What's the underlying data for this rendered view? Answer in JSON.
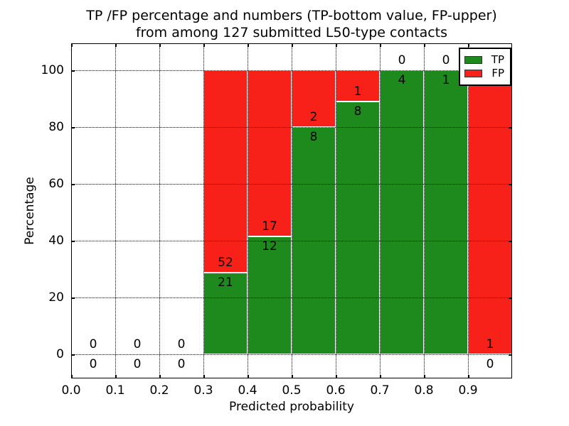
{
  "title": {
    "line1": "TP /FP percentage and numbers (TP-bottom value, FP-upper)",
    "line2": "from among 127 submitted L50-type contacts"
  },
  "axes": {
    "xlabel": "Predicted probability",
    "ylabel": "Percentage",
    "x_tick_labels": [
      "0.0",
      "0.1",
      "0.2",
      "0.3",
      "0.4",
      "0.5",
      "0.6",
      "0.7",
      "0.8",
      "0.9"
    ],
    "y_tick_labels": [
      "0",
      "20",
      "40",
      "60",
      "80",
      "100"
    ],
    "grid_style": "dotted",
    "grid_on_top_of_bars": true
  },
  "legend": {
    "position": "upper-right",
    "items": [
      {
        "label": "TP",
        "color": "#1e8a1e"
      },
      {
        "label": "FP",
        "color": "#f8211a"
      }
    ]
  },
  "chart_data": {
    "type": "bar",
    "stacked": true,
    "normalized_to_percent": 100,
    "title": "TP /FP percentage and numbers (TP-bottom value, FP-upper) from among 127 submitted L50-type contacts",
    "xlabel": "Predicted probability",
    "ylabel": "Percentage",
    "total_contacts": 127,
    "bin_edges": [
      0.0,
      0.1,
      0.2,
      0.3,
      0.4,
      0.5,
      0.6,
      0.7,
      0.8,
      0.9,
      1.0
    ],
    "x_ticks": [
      0.0,
      0.1,
      0.2,
      0.3,
      0.4,
      0.5,
      0.6,
      0.7,
      0.8,
      0.9
    ],
    "y_ticks": [
      0,
      20,
      40,
      60,
      80,
      100
    ],
    "xlim": [
      0.0,
      1.0
    ],
    "ylim": [
      -8.5,
      109.5
    ],
    "series": [
      {
        "name": "TP",
        "color": "#1e8a1e",
        "counts": [
          0,
          0,
          0,
          21,
          12,
          8,
          8,
          4,
          1,
          0
        ]
      },
      {
        "name": "FP",
        "color": "#f8211a",
        "counts": [
          0,
          0,
          0,
          52,
          17,
          2,
          1,
          0,
          0,
          1
        ]
      }
    ],
    "tp_percent_of_bin": [
      0,
      0,
      0,
      28.8,
      41.4,
      80.0,
      88.9,
      100.0,
      100.0,
      0.0
    ],
    "bar_label_rule": "FP count printed above green/red boundary, TP count printed below it"
  }
}
